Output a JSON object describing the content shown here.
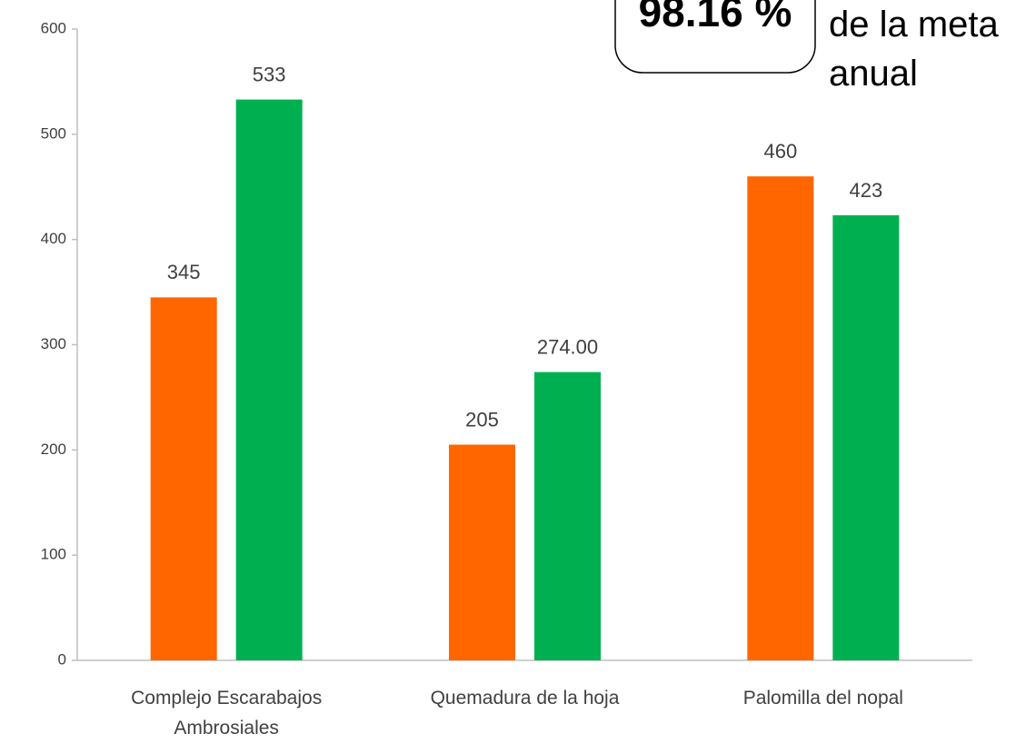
{
  "chart_data": {
    "type": "bar",
    "categories": [
      "Complejo Escarabajos Ambrosiales",
      "Quemadura de la hoja",
      "Palomilla del nopal"
    ],
    "series": [
      {
        "color": "#ff6600",
        "values": [
          345,
          205,
          460
        ]
      },
      {
        "color": "#00b050",
        "values": [
          533,
          274,
          423
        ],
        "value_labels": [
          "533",
          "274.00",
          "423"
        ]
      }
    ],
    "ylim": [
      0,
      600
    ],
    "yticks": [
      0,
      100,
      200,
      300,
      400,
      500,
      600
    ],
    "annotations": [
      "98.16 %",
      "de la meta",
      "anual"
    ]
  }
}
